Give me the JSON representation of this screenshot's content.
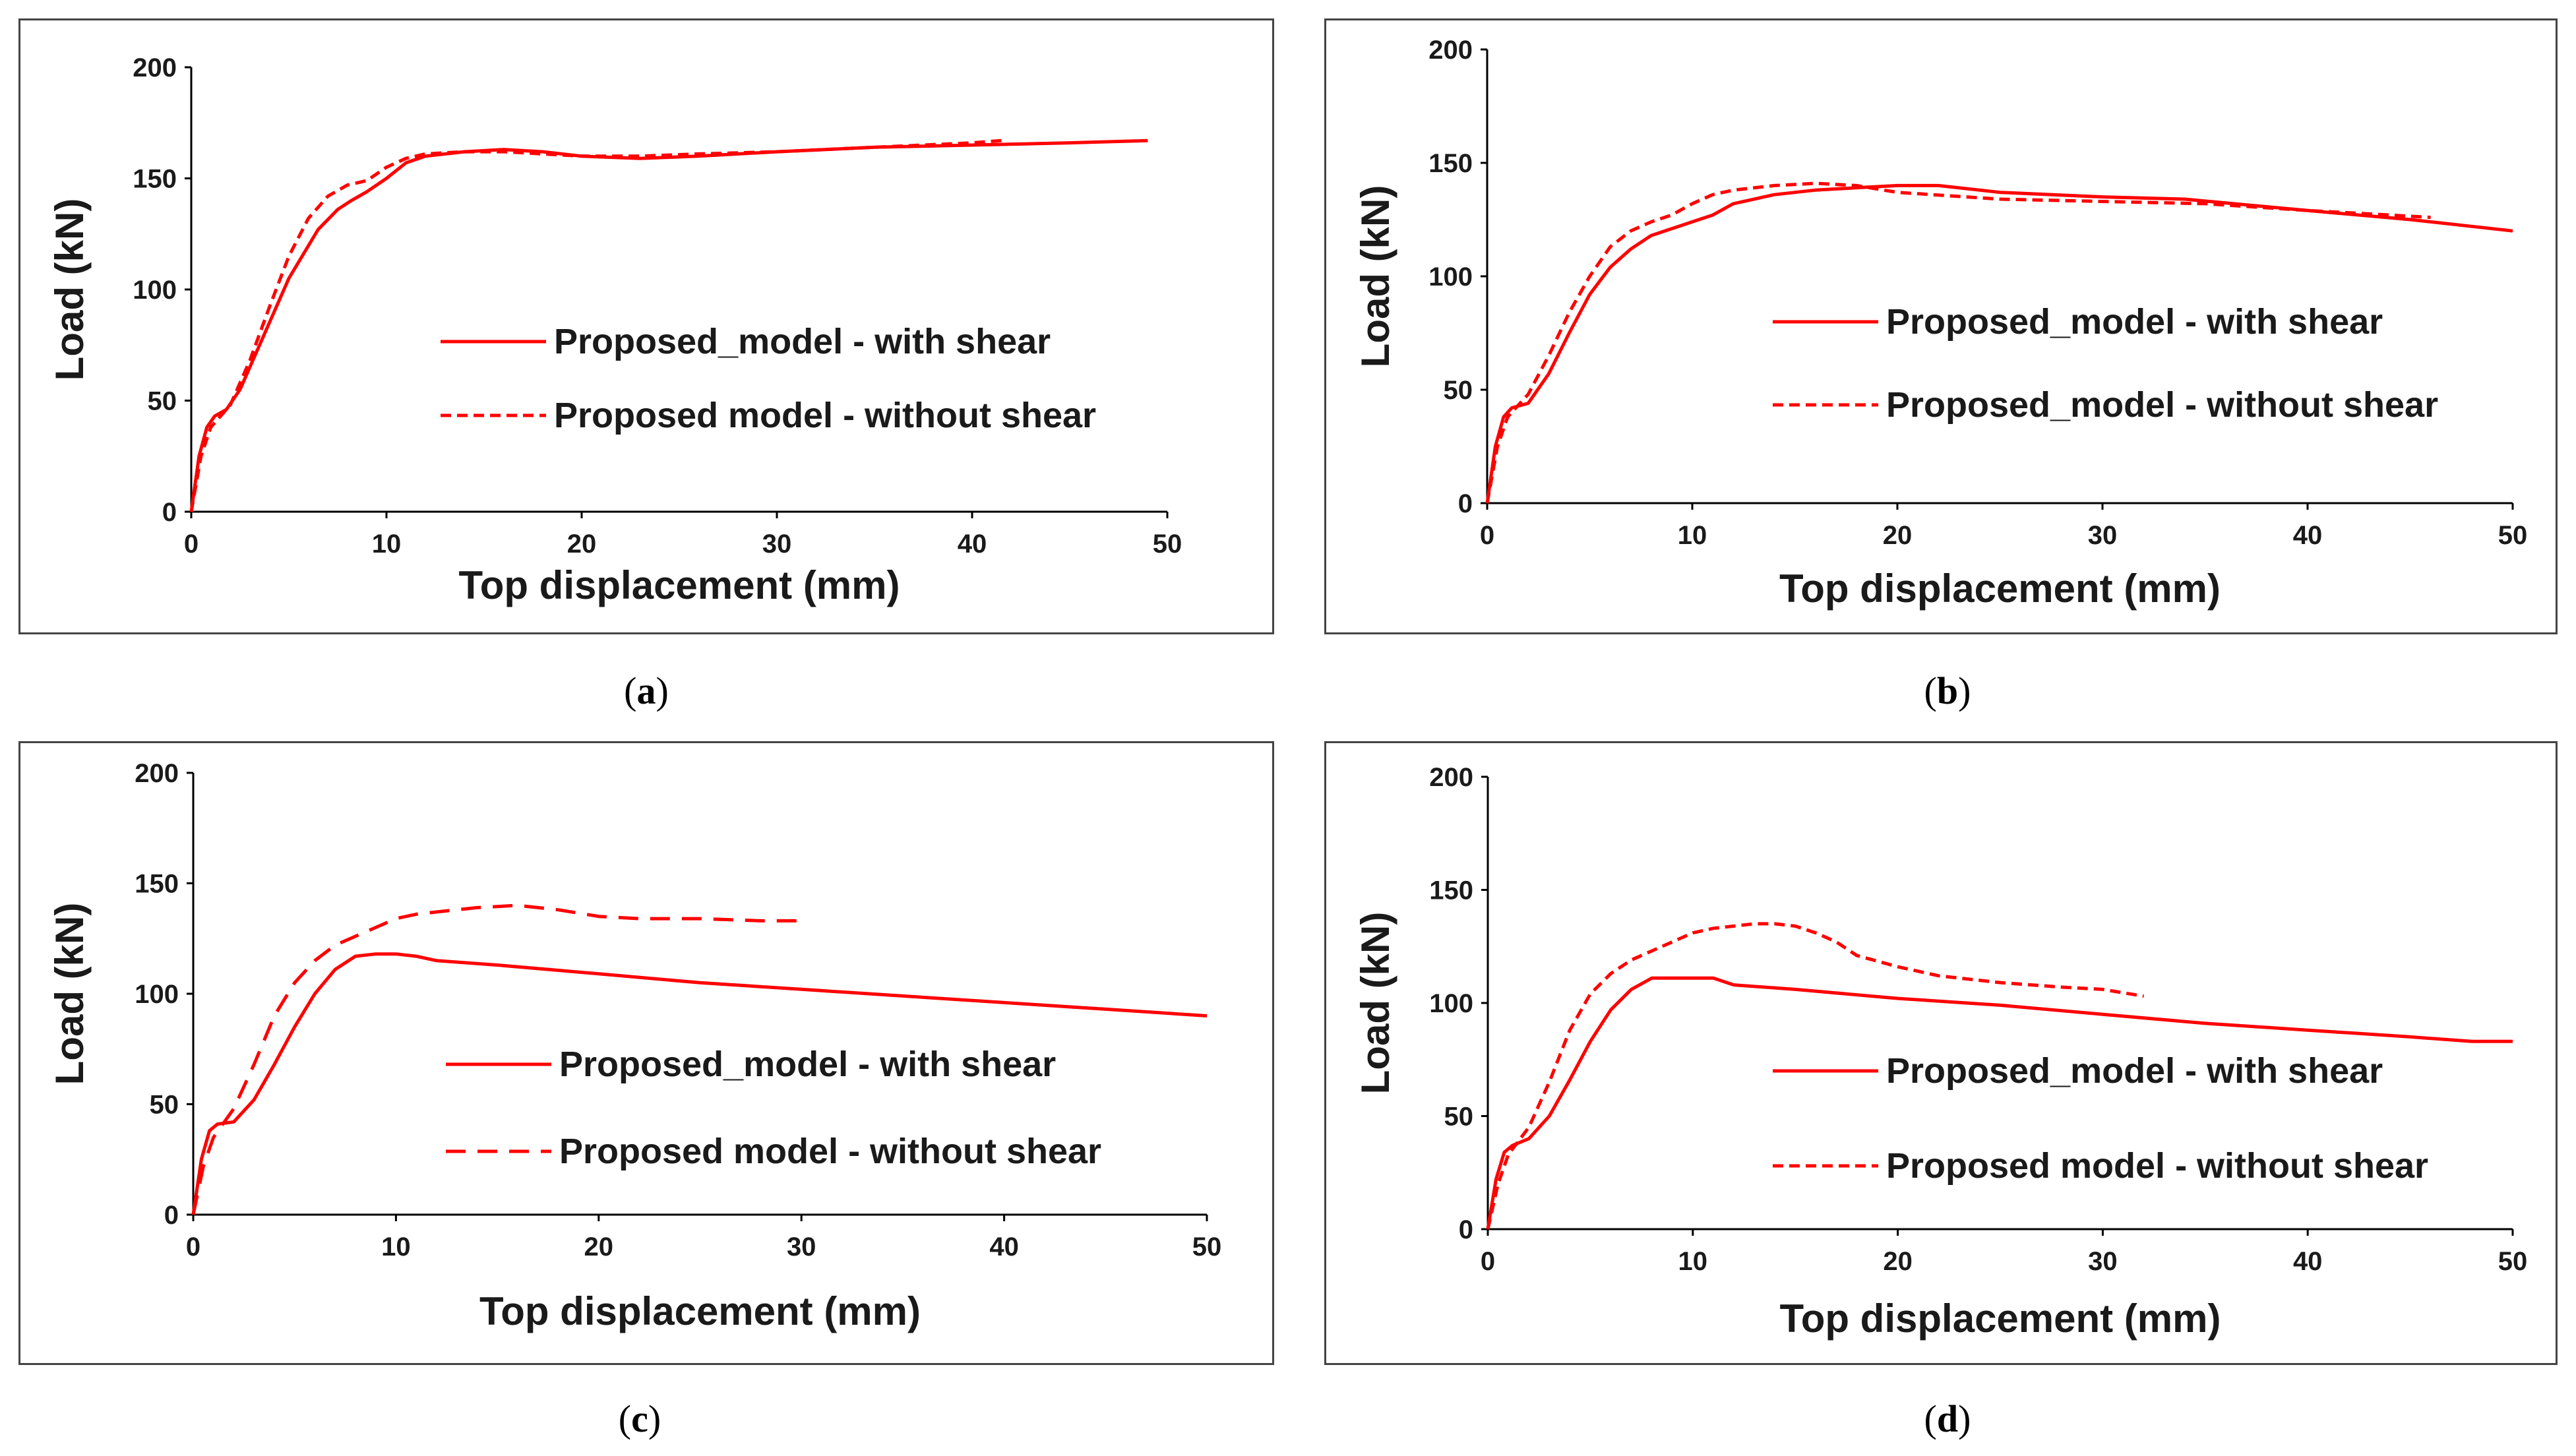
{
  "colors": {
    "series": "#ff0000",
    "axis": "#000000",
    "frame": "#444444",
    "text": "#1a1a1a"
  },
  "chart_data": [
    {
      "panel": "a",
      "caption_letter": "a",
      "type": "line",
      "xlabel": "Top displacement (mm)",
      "ylabel": "Load (kN)",
      "xlim": [
        0,
        50
      ],
      "ylim": [
        0,
        200
      ],
      "xticks": [
        0,
        10,
        20,
        30,
        40,
        50
      ],
      "yticks": [
        0,
        50,
        100,
        150,
        200
      ],
      "legend_position": "center-right",
      "series": [
        {
          "name": "Proposed_model - with shear",
          "style": "solid",
          "x": [
            0,
            0.4,
            0.8,
            1.2,
            1.8,
            2.5,
            3.5,
            5,
            6.5,
            7.5,
            8.2,
            9,
            10,
            11,
            12,
            14,
            16,
            18,
            20,
            23,
            26,
            30,
            35,
            40,
            45,
            49
          ],
          "y": [
            0,
            25,
            38,
            43,
            46,
            55,
            75,
            105,
            127,
            136,
            140,
            144,
            150,
            157,
            160,
            162,
            163,
            162,
            160,
            159,
            160,
            162,
            164,
            165,
            166,
            167
          ]
        },
        {
          "name": "Proposed model - without shear",
          "style": "dashed",
          "x": [
            0,
            0.5,
            1,
            2,
            3,
            4,
            5,
            6,
            7,
            8,
            9,
            10,
            11,
            12,
            14,
            16,
            18,
            20,
            23,
            26,
            30,
            35,
            40,
            41.5
          ],
          "y": [
            0,
            25,
            38,
            48,
            68,
            92,
            115,
            132,
            142,
            147,
            149,
            155,
            159,
            161,
            162,
            162,
            161,
            160,
            160,
            161,
            162,
            164,
            166,
            167
          ]
        }
      ]
    },
    {
      "panel": "b",
      "caption_letter": "b",
      "type": "line",
      "xlabel": "Top displacement (mm)",
      "ylabel": "Load (kN)",
      "xlim": [
        0,
        50
      ],
      "ylim": [
        0,
        200
      ],
      "xticks": [
        0,
        10,
        20,
        30,
        40,
        50
      ],
      "yticks": [
        0,
        50,
        100,
        150,
        200
      ],
      "legend_position": "center-right",
      "series": [
        {
          "name": "Proposed_model - with shear",
          "style": "solid",
          "x": [
            0,
            0.4,
            0.8,
            1.2,
            2,
            3,
            4,
            5,
            6,
            7,
            8,
            9,
            10,
            11,
            12,
            14,
            16,
            18,
            20,
            22,
            25,
            30,
            34,
            40,
            45,
            50
          ],
          "y": [
            0,
            25,
            38,
            42,
            44,
            57,
            75,
            92,
            104,
            112,
            118,
            121,
            124,
            127,
            132,
            136,
            138,
            139,
            140,
            140,
            137,
            135,
            134,
            129,
            125,
            120
          ]
        },
        {
          "name": "Proposed_model - without shear",
          "style": "dashed",
          "x": [
            0,
            0.5,
            1,
            2,
            3,
            4,
            5,
            6,
            7,
            8,
            9,
            10,
            11,
            12,
            14,
            16,
            18,
            20,
            25,
            30,
            35,
            40,
            46
          ],
          "y": [
            0,
            25,
            38,
            48,
            65,
            84,
            100,
            113,
            120,
            124,
            127,
            132,
            136,
            138,
            140,
            141,
            140,
            137,
            134,
            133,
            132,
            129,
            126
          ]
        }
      ]
    },
    {
      "panel": "c",
      "caption_letter": "c",
      "type": "line",
      "xlabel": "Top displacement (mm)",
      "ylabel": "Load (kN)",
      "xlim": [
        0,
        50
      ],
      "ylim": [
        0,
        200
      ],
      "xticks": [
        0,
        10,
        20,
        30,
        40,
        50
      ],
      "yticks": [
        0,
        50,
        100,
        150,
        200
      ],
      "legend_position": "center-right",
      "series": [
        {
          "name": "Proposed_model - with shear",
          "style": "solid",
          "x": [
            0,
            0.4,
            0.8,
            1.2,
            2,
            3,
            4,
            5,
            6,
            7,
            8,
            9,
            10,
            11,
            12,
            15,
            20,
            25,
            30,
            35,
            40,
            45,
            50
          ],
          "y": [
            0,
            25,
            38,
            41,
            42,
            52,
            68,
            85,
            100,
            111,
            117,
            118,
            118,
            117,
            115,
            113,
            109,
            105,
            102,
            99,
            96,
            93,
            90
          ]
        },
        {
          "name": "Proposed model - without shear",
          "style": "dashed",
          "x": [
            0,
            0.5,
            1,
            2,
            3,
            4,
            5,
            6,
            7,
            8,
            9,
            10,
            11,
            12,
            14,
            16,
            18,
            20,
            22,
            25,
            28,
            30
          ],
          "y": [
            0,
            22,
            35,
            48,
            68,
            90,
            105,
            115,
            122,
            126,
            130,
            134,
            136,
            137,
            139,
            140,
            138,
            135,
            134,
            134,
            133,
            133
          ]
        }
      ]
    },
    {
      "panel": "d",
      "caption_letter": "d",
      "type": "line",
      "xlabel": "Top displacement (mm)",
      "ylabel": "Load (kN)",
      "xlim": [
        0,
        50
      ],
      "ylim": [
        0,
        200
      ],
      "xticks": [
        0,
        10,
        20,
        30,
        40,
        50
      ],
      "yticks": [
        0,
        50,
        100,
        150,
        200
      ],
      "legend_position": "center-right",
      "series": [
        {
          "name": "Proposed_model - with shear",
          "style": "solid",
          "x": [
            0,
            0.4,
            0.8,
            1.2,
            2,
            3,
            4,
            5,
            6,
            7,
            8,
            9,
            10,
            11,
            12,
            15,
            20,
            25,
            30,
            35,
            40,
            45,
            48,
            50
          ],
          "y": [
            0,
            22,
            34,
            37,
            40,
            50,
            66,
            83,
            97,
            106,
            111,
            111,
            111,
            111,
            108,
            106,
            102,
            99,
            95,
            91,
            88,
            85,
            83,
            83
          ]
        },
        {
          "name": "Proposed model - without shear",
          "style": "dashed",
          "x": [
            0,
            0.5,
            1,
            2,
            3,
            4,
            5,
            6,
            7,
            8,
            9,
            10,
            11,
            12,
            13,
            14,
            15,
            16,
            17,
            18,
            20,
            22,
            25,
            28,
            30,
            32
          ],
          "y": [
            0,
            20,
            33,
            45,
            65,
            88,
            104,
            113,
            119,
            123,
            127,
            131,
            133,
            134,
            135,
            135,
            134,
            131,
            127,
            121,
            116,
            112,
            109,
            107,
            106,
            103
          ]
        }
      ]
    }
  ]
}
